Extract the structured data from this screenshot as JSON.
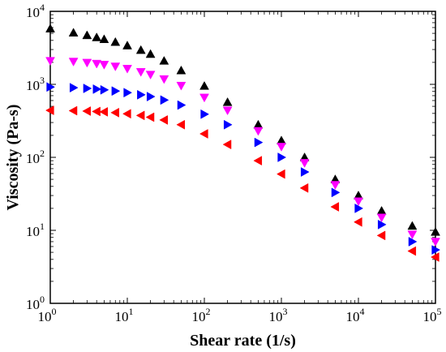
{
  "chart_data": {
    "type": "scatter",
    "title": "",
    "xlabel": "Shear rate (1/s)",
    "ylabel": "Viscosity (Pa-s)",
    "xscale": "log",
    "yscale": "log",
    "xlim": [
      1,
      100000
    ],
    "ylim": [
      1,
      10000
    ],
    "grid": false,
    "legend": "none",
    "x_ticks": [
      {
        "base": "10",
        "exp": "0",
        "value": 1
      },
      {
        "base": "10",
        "exp": "1",
        "value": 10
      },
      {
        "base": "10",
        "exp": "2",
        "value": 100
      },
      {
        "base": "10",
        "exp": "3",
        "value": 1000
      },
      {
        "base": "10",
        "exp": "4",
        "value": 10000
      },
      {
        "base": "10",
        "exp": "5",
        "value": 100000
      }
    ],
    "y_ticks": [
      {
        "base": "10",
        "exp": "0",
        "value": 1
      },
      {
        "base": "10",
        "exp": "1",
        "value": 10
      },
      {
        "base": "10",
        "exp": "2",
        "value": 100
      },
      {
        "base": "10",
        "exp": "3",
        "value": 1000
      },
      {
        "base": "10",
        "exp": "4",
        "value": 10000
      }
    ],
    "series": [
      {
        "color": "#000000",
        "marker": "triangle-up",
        "x": [
          1,
          2,
          3,
          4,
          5,
          7,
          10,
          15,
          20,
          30,
          50,
          100,
          200,
          500,
          1000,
          2000,
          5000,
          10000,
          20000,
          50000,
          100000
        ],
        "y": [
          5800,
          5100,
          4700,
          4400,
          4150,
          3800,
          3400,
          2950,
          2600,
          2100,
          1550,
          950,
          570,
          280,
          170,
          100,
          50,
          30,
          18.5,
          11.5,
          9.5
        ]
      },
      {
        "color": "#ff00ff",
        "marker": "triangle-down",
        "x": [
          1,
          2,
          3,
          4,
          5,
          7,
          10,
          15,
          20,
          30,
          50,
          100,
          200,
          500,
          1000,
          2000,
          5000,
          10000,
          20000,
          50000,
          100000
        ],
        "y": [
          2100,
          2050,
          1980,
          1920,
          1860,
          1760,
          1640,
          1480,
          1360,
          1180,
          960,
          660,
          440,
          230,
          140,
          84,
          42,
          25,
          15,
          8.8,
          7.0
        ]
      },
      {
        "color": "#0000ff",
        "marker": "triangle-right",
        "x": [
          1,
          2,
          3,
          4,
          5,
          7,
          10,
          15,
          20,
          30,
          50,
          100,
          200,
          500,
          1000,
          2000,
          5000,
          10000,
          20000,
          50000,
          100000
        ],
        "y": [
          920,
          900,
          880,
          860,
          840,
          810,
          770,
          720,
          680,
          610,
          520,
          390,
          280,
          160,
          100,
          63,
          33,
          20,
          12,
          7.0,
          5.4
        ]
      },
      {
        "color": "#ff0000",
        "marker": "triangle-left",
        "x": [
          1,
          2,
          3,
          4,
          5,
          7,
          10,
          15,
          20,
          30,
          50,
          100,
          200,
          500,
          1000,
          2000,
          5000,
          10000,
          20000,
          50000,
          100000
        ],
        "y": [
          440,
          435,
          430,
          425,
          420,
          410,
          395,
          375,
          355,
          325,
          280,
          210,
          150,
          90,
          59,
          38,
          21,
          13,
          8.5,
          5.2,
          4.3
        ]
      }
    ]
  }
}
